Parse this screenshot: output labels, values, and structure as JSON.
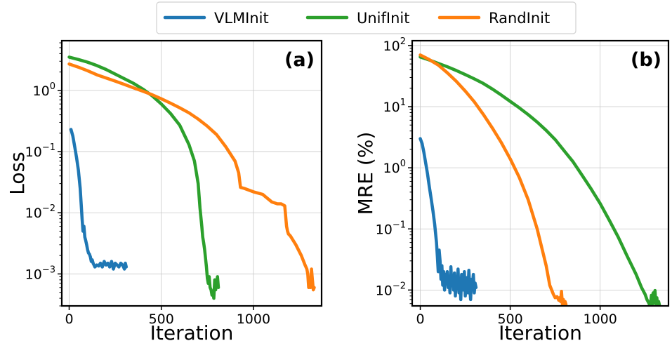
{
  "chart_data": [
    {
      "type": "line",
      "panel_label": "(a)",
      "xlabel": "Iteration",
      "ylabel": "Loss",
      "yscale": "log",
      "xlim": [
        -40,
        1370
      ],
      "ylim": [
        0.0003,
        6.5
      ],
      "x_ticks": [
        0,
        500,
        1000
      ],
      "x_tick_labels": [
        "0",
        "500",
        "1000"
      ],
      "y_ticks": [
        1,
        0.1,
        0.01,
        0.001
      ],
      "y_tick_labels": [
        {
          "base": "10",
          "exp": "0"
        },
        {
          "base": "10",
          "exp": "−1"
        },
        {
          "base": "10",
          "exp": "−2"
        },
        {
          "base": "10",
          "exp": "−3"
        }
      ],
      "grid": true,
      "series": [
        {
          "name": "VLMInit",
          "color": "#1f77b4",
          "x": [
            10,
            20,
            30,
            40,
            50,
            60,
            70,
            75,
            80,
            85,
            90,
            95,
            100,
            105,
            110,
            115,
            120,
            125,
            130,
            135,
            140,
            150,
            160,
            170,
            180,
            190,
            200,
            210,
            220,
            230,
            240,
            250,
            260,
            270,
            280,
            290,
            300,
            305,
            310
          ],
          "y": [
            0.23,
            0.18,
            0.12,
            0.08,
            0.05,
            0.025,
            0.008,
            0.005,
            0.006,
            0.004,
            0.0035,
            0.003,
            0.0025,
            0.0022,
            0.0021,
            0.0019,
            0.0016,
            0.0017,
            0.0015,
            0.0014,
            0.0013,
            0.0014,
            0.00135,
            0.0015,
            0.0013,
            0.0016,
            0.0014,
            0.0015,
            0.0013,
            0.0016,
            0.0012,
            0.0015,
            0.0014,
            0.0013,
            0.0015,
            0.0014,
            0.0012,
            0.0015,
            0.0013
          ]
        },
        {
          "name": "UnifInit",
          "color": "#2ca02c",
          "x": [
            0,
            50,
            100,
            150,
            200,
            250,
            300,
            350,
            400,
            450,
            500,
            550,
            600,
            650,
            680,
            700,
            710,
            720,
            725,
            730,
            735,
            740,
            745,
            750,
            755,
            760,
            765,
            770,
            775,
            780,
            785,
            790,
            795,
            800,
            805,
            810
          ],
          "y": [
            3.5,
            3.2,
            2.9,
            2.55,
            2.2,
            1.85,
            1.55,
            1.3,
            1.05,
            0.82,
            0.6,
            0.42,
            0.27,
            0.13,
            0.07,
            0.03,
            0.012,
            0.006,
            0.004,
            0.0032,
            0.0025,
            0.0018,
            0.0013,
            0.00085,
            0.0007,
            0.0009,
            0.0006,
            0.00055,
            0.00045,
            0.0005,
            0.0004,
            0.0008,
            0.00055,
            0.0007,
            0.0009,
            0.0006
          ]
        },
        {
          "name": "RandInit",
          "color": "#ff7f0e",
          "x": [
            0,
            50,
            100,
            150,
            200,
            250,
            300,
            350,
            400,
            450,
            500,
            550,
            600,
            650,
            700,
            750,
            800,
            850,
            900,
            920,
            930,
            950,
            1000,
            1050,
            1100,
            1130,
            1150,
            1170,
            1180,
            1185,
            1190,
            1200,
            1230,
            1260,
            1280,
            1290,
            1295,
            1300,
            1305,
            1310,
            1315,
            1320,
            1325,
            1330
          ],
          "y": [
            2.7,
            2.4,
            2.1,
            1.8,
            1.6,
            1.42,
            1.25,
            1.1,
            0.97,
            0.85,
            0.73,
            0.62,
            0.52,
            0.43,
            0.34,
            0.26,
            0.19,
            0.12,
            0.07,
            0.045,
            0.026,
            0.025,
            0.022,
            0.02,
            0.015,
            0.014,
            0.014,
            0.013,
            0.006,
            0.005,
            0.0045,
            0.0042,
            0.003,
            0.002,
            0.0014,
            0.0012,
            0.001,
            0.0006,
            0.0008,
            0.0006,
            0.0012,
            0.0008,
            0.00055,
            0.0006
          ]
        }
      ]
    },
    {
      "type": "line",
      "panel_label": "(b)",
      "xlabel": "Iteration",
      "ylabel": "MRE (%)",
      "yscale": "log",
      "xlim": [
        -45,
        1380
      ],
      "ylim": [
        0.0055,
        120
      ],
      "x_ticks": [
        0,
        500,
        1000
      ],
      "x_tick_labels": [
        "0",
        "500",
        "1000"
      ],
      "y_ticks": [
        100,
        10,
        1,
        0.1,
        0.01
      ],
      "y_tick_labels": [
        {
          "base": "10",
          "exp": "2"
        },
        {
          "base": "10",
          "exp": "1"
        },
        {
          "base": "10",
          "exp": "0"
        },
        {
          "base": "10",
          "exp": "−1"
        },
        {
          "base": "10",
          "exp": "−2"
        }
      ],
      "grid": true,
      "series": [
        {
          "name": "VLMInit",
          "color": "#1f77b4",
          "x": [
            0,
            10,
            20,
            30,
            40,
            50,
            60,
            70,
            80,
            90,
            95,
            100,
            105,
            110,
            115,
            120,
            125,
            130,
            135,
            140,
            145,
            150,
            155,
            160,
            165,
            170,
            175,
            180,
            185,
            190,
            195,
            200,
            205,
            210,
            215,
            220,
            225,
            230,
            235,
            240,
            245,
            250,
            255,
            260,
            265,
            270,
            275,
            280,
            285,
            290,
            295,
            300,
            305,
            310
          ],
          "y": [
            3,
            2.5,
            1.8,
            1.2,
            0.8,
            0.5,
            0.32,
            0.2,
            0.12,
            0.06,
            0.035,
            0.02,
            0.045,
            0.03,
            0.015,
            0.025,
            0.012,
            0.02,
            0.01,
            0.018,
            0.013,
            0.02,
            0.011,
            0.016,
            0.009,
            0.024,
            0.012,
            0.017,
            0.01,
            0.019,
            0.008,
            0.015,
            0.011,
            0.022,
            0.009,
            0.014,
            0.007,
            0.018,
            0.012,
            0.01,
            0.02,
            0.008,
            0.013,
            0.016,
            0.009,
            0.021,
            0.011,
            0.007,
            0.015,
            0.012,
            0.018,
            0.009,
            0.013,
            0.011
          ]
        },
        {
          "name": "UnifInit",
          "color": "#2ca02c",
          "x": [
            0,
            50,
            100,
            150,
            200,
            250,
            300,
            350,
            400,
            450,
            500,
            550,
            600,
            650,
            700,
            750,
            800,
            850,
            900,
            950,
            1000,
            1050,
            1100,
            1150,
            1200,
            1230,
            1250,
            1260,
            1270,
            1275,
            1280,
            1285,
            1290,
            1295,
            1300,
            1305,
            1310,
            1315,
            1320,
            1325,
            1330
          ],
          "y": [
            65,
            58,
            51,
            45,
            39,
            33.5,
            28.5,
            24,
            19.5,
            15.5,
            12.2,
            9.6,
            7.4,
            5.6,
            4.1,
            2.9,
            1.9,
            1.25,
            0.75,
            0.45,
            0.26,
            0.14,
            0.074,
            0.036,
            0.018,
            0.011,
            0.0085,
            0.007,
            0.0062,
            0.0057,
            0.0058,
            0.0082,
            0.0056,
            0.009,
            0.0062,
            0.0098,
            0.0058,
            0.0075,
            0.0052,
            0.0065,
            0.0056
          ]
        },
        {
          "name": "RandInit",
          "color": "#ff7f0e",
          "x": [
            0,
            50,
            100,
            150,
            200,
            250,
            300,
            350,
            400,
            450,
            500,
            550,
            600,
            650,
            700,
            720,
            740,
            750,
            760,
            770,
            775,
            780,
            785,
            790,
            795,
            800,
            805,
            810
          ],
          "y": [
            70,
            59,
            48,
            36,
            26,
            18,
            12,
            7.5,
            4.5,
            2.6,
            1.4,
            0.7,
            0.3,
            0.1,
            0.025,
            0.012,
            0.0085,
            0.0075,
            0.0078,
            0.0068,
            0.0075,
            0.0065,
            0.0095,
            0.0058,
            0.007,
            0.0055,
            0.0065,
            0.0058
          ]
        }
      ]
    }
  ],
  "legend": {
    "placement": "top-center",
    "entries": [
      {
        "name": "VLMInit",
        "color": "#1f77b4"
      },
      {
        "name": "UnifInit",
        "color": "#2ca02c"
      },
      {
        "name": "RandInit",
        "color": "#ff7f0e"
      }
    ]
  }
}
